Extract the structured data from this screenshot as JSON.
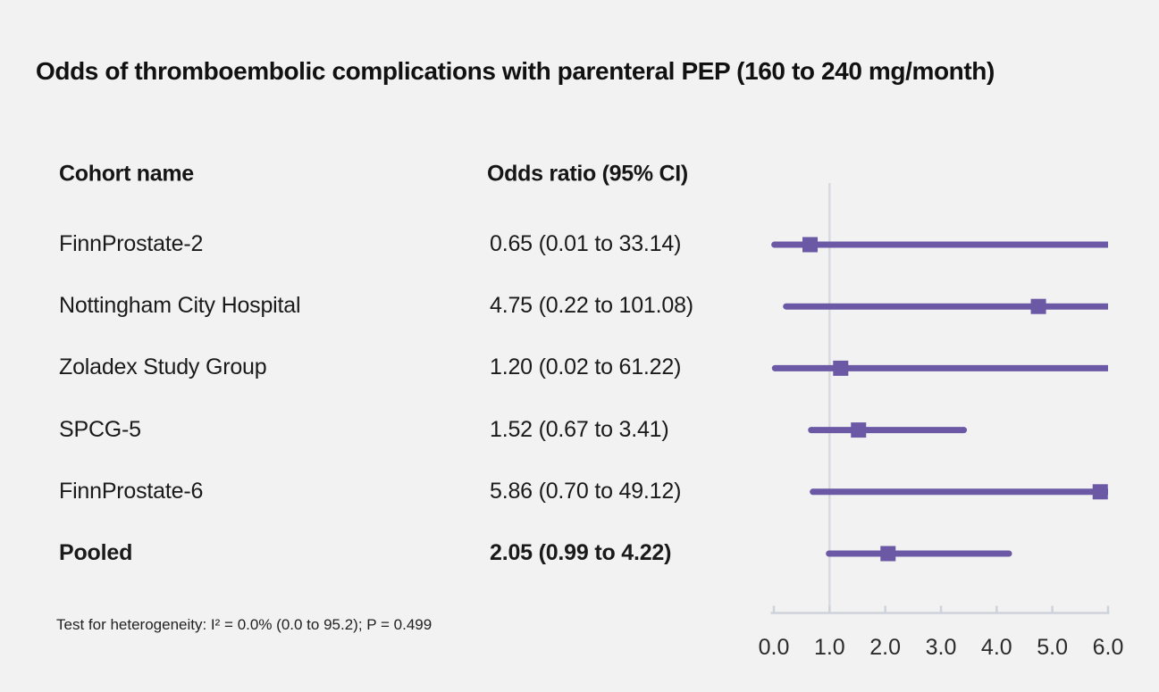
{
  "title": "Odds of thromboembolic complications with parenteral PEP (160 to 240 mg/month)",
  "columns": {
    "cohort": "Cohort name",
    "odds_ratio": "Odds ratio (95% CI)"
  },
  "footnote": "Test for heterogeneity: I² = 0.0% (0.0 to 95.2); P = 0.499",
  "colors": {
    "background": "#f2f2f2",
    "text": "#1a1a1a",
    "marker": "#6b59a6",
    "ci_line": "#6b59a6",
    "axis": "#ced3db",
    "reference_line": "#d7dbe1"
  },
  "chart_data": {
    "type": "forest",
    "title": "Odds of thromboembolic complications with parenteral PEP (160 to 240 mg/month)",
    "xlabel": "Odds ratio",
    "xlim": [
      0.0,
      6.0
    ],
    "reference_line": 1.0,
    "ticks": [
      0,
      1,
      2,
      3,
      4,
      5,
      6
    ],
    "tick_labels": [
      "0.0",
      "1.0",
      "2.0",
      "3.0",
      "4.0",
      "5.0",
      "6.0"
    ],
    "grid": false,
    "rows": [
      {
        "name": "FinnProstate-2",
        "label": "0.65 (0.01 to 33.14)",
        "estimate": 0.65,
        "lower": 0.01,
        "upper": 33.14,
        "bold": false
      },
      {
        "name": "Nottingham City Hospital",
        "label": "4.75 (0.22 to 101.08)",
        "estimate": 4.75,
        "lower": 0.22,
        "upper": 101.08,
        "bold": false
      },
      {
        "name": "Zoladex Study Group",
        "label": "1.20 (0.02 to 61.22)",
        "estimate": 1.2,
        "lower": 0.02,
        "upper": 61.22,
        "bold": false
      },
      {
        "name": "SPCG-5",
        "label": "1.52 (0.67 to 3.41)",
        "estimate": 1.52,
        "lower": 0.67,
        "upper": 3.41,
        "bold": false
      },
      {
        "name": "FinnProstate-6",
        "label": "5.86 (0.70 to 49.12)",
        "estimate": 5.86,
        "lower": 0.7,
        "upper": 49.12,
        "bold": false
      },
      {
        "name": "Pooled",
        "label": "2.05 (0.99 to 4.22)",
        "estimate": 2.05,
        "lower": 0.99,
        "upper": 4.22,
        "bold": true
      }
    ]
  }
}
